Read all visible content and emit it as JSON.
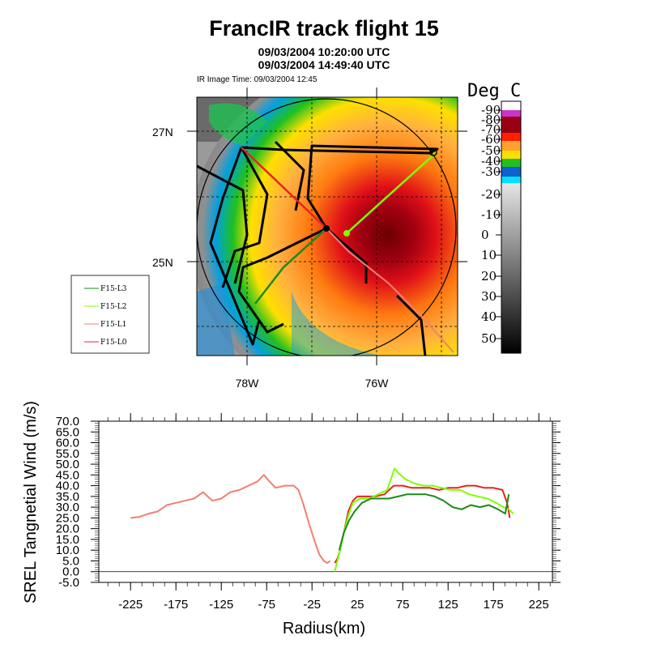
{
  "title": "FrancIR track flight 15",
  "subtitle1": "09/03/2004 10:20:00 UTC",
  "subtitle2": "09/03/2004 14:49:40 UTC",
  "image_time": "IR Image Time: 09/03/2004 12:45",
  "colorbar": {
    "title": "Deg C",
    "labels": [
      "-90",
      "-80",
      "-70",
      "-60",
      "-50",
      "-40",
      "-30",
      "-20",
      "-10",
      "0",
      "10",
      "20",
      "30",
      "40",
      "50"
    ]
  },
  "map": {
    "lat_labels": [
      "27N",
      "25N"
    ],
    "lon_labels": [
      "78W",
      "76W"
    ]
  },
  "legend": [
    "F15-L3",
    "F15-L2",
    "F15-L1",
    "F15-L0"
  ],
  "colors": {
    "L0": "#e8231e",
    "L1": "#f08070",
    "L2": "#7fff00",
    "L3": "#1a8a1a"
  },
  "chart_data": [
    {
      "type": "map",
      "title": "FrancIR track flight 15",
      "series": [
        {
          "name": "F15-L3",
          "color": "#1a8a1a"
        },
        {
          "name": "F15-L2",
          "color": "#7fff00"
        },
        {
          "name": "F15-L1",
          "color": "#f08070"
        },
        {
          "name": "F15-L0",
          "color": "#e8231e"
        }
      ]
    },
    {
      "type": "line",
      "xlabel": "Radius(km)",
      "ylabel": "SREL Tangnetial Wind (m/s)",
      "xlim": [
        -260,
        240
      ],
      "ylim": [
        -5,
        70
      ],
      "xticks": [
        "-225",
        "-175",
        "-125",
        "-75",
        "-25",
        "25",
        "75",
        "125",
        "175",
        "225"
      ],
      "yticks": [
        "-5.0",
        "0.0",
        "5.0",
        "10.0",
        "15.0",
        "20.0",
        "25.0",
        "30.0",
        "35.0",
        "40.0",
        "45.0",
        "50.0",
        "55.0",
        "60.0",
        "65.0",
        "70.0"
      ],
      "series": [
        {
          "name": "F15-L1",
          "color": "#f08070",
          "x": [
            -225,
            -215,
            -205,
            -195,
            -185,
            -175,
            -165,
            -155,
            -145,
            -140,
            -135,
            -125,
            -115,
            -105,
            -95,
            -85,
            -78,
            -72,
            -65,
            -55,
            -45,
            -40,
            -35,
            -28,
            -22,
            -17,
            -12,
            -8,
            -5
          ],
          "y": [
            25,
            25.5,
            27,
            28,
            31,
            32,
            33,
            34,
            37,
            35,
            33,
            34,
            37,
            38,
            40,
            42,
            45,
            42,
            39,
            40,
            40,
            38,
            32,
            22,
            14,
            8,
            5,
            4,
            5
          ]
        },
        {
          "name": "F15-L0",
          "color": "#e8231e",
          "x": [
            0,
            3,
            6,
            10,
            15,
            20,
            25,
            35,
            45,
            55,
            65,
            75,
            85,
            95,
            105,
            115,
            125,
            135,
            145,
            155,
            165,
            175,
            185,
            190,
            193
          ],
          "y": [
            4,
            6,
            10,
            18,
            28,
            33,
            35,
            35,
            35,
            36,
            40,
            40,
            39,
            39,
            39,
            38,
            39,
            39,
            40,
            40,
            39,
            39,
            38,
            32,
            25
          ]
        },
        {
          "name": "F15-L2",
          "color": "#7fff00",
          "x": [
            0,
            3,
            6,
            10,
            15,
            20,
            28,
            38,
            48,
            58,
            62,
            66,
            70,
            78,
            88,
            98,
            108,
            118,
            128,
            138,
            148,
            158,
            168,
            178,
            186,
            192,
            197
          ],
          "y": [
            0,
            5,
            10,
            18,
            26,
            32,
            34,
            34,
            36,
            38,
            43,
            48,
            46,
            43,
            41,
            40,
            40,
            39,
            38,
            38,
            36,
            35,
            34,
            32,
            30,
            29,
            27
          ]
        },
        {
          "name": "F15-L3",
          "color": "#1a8a1a",
          "x": [
            5,
            10,
            16,
            22,
            30,
            40,
            50,
            60,
            70,
            80,
            90,
            100,
            110,
            120,
            130,
            140,
            150,
            160,
            170,
            180,
            188,
            192
          ],
          "y": [
            10,
            18,
            24,
            28,
            32,
            34,
            34,
            34,
            35,
            36,
            36,
            36,
            35,
            33,
            30,
            29,
            31,
            30,
            31,
            29,
            27,
            36
          ]
        }
      ]
    }
  ]
}
